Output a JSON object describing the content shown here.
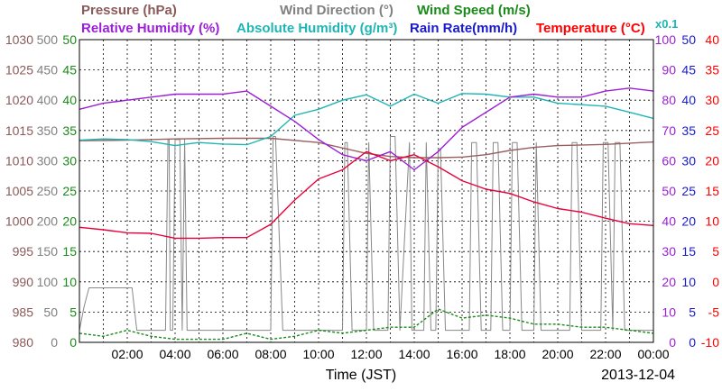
{
  "chart_data": {
    "type": "line",
    "header": {
      "row1": [
        {
          "text": "Pressure (hPa)",
          "color": "#8b5a5a"
        },
        {
          "text": "Wind Direction (°)",
          "color": "#808080"
        },
        {
          "text": "Wind Speed (m/s)",
          "color": "#1a8a1a"
        }
      ],
      "row2": [
        {
          "text": "Relative Humidity (%)",
          "color": "#9b1fd6"
        },
        {
          "text": "Absolute Humidity (g/m³)",
          "color": "#1fb5b5"
        },
        {
          "text": "Rain Rate(mm/h)",
          "color": "#1a1acc"
        },
        {
          "text": "Temperature (°C)",
          "color": "#ff0000"
        }
      ],
      "scale_note": {
        "text": "x0.1",
        "color": "#1fb5b5"
      }
    },
    "xlabel": "Time (JST)",
    "date": "2013-12-04",
    "x_range_hours": [
      0,
      24
    ],
    "x_ticks": [
      "02:00",
      "04:00",
      "06:00",
      "08:00",
      "10:00",
      "12:00",
      "14:00",
      "16:00",
      "18:00",
      "20:00",
      "22:00",
      "00:00"
    ],
    "grid": true,
    "left_axes": [
      {
        "name": "Pressure (hPa)",
        "color": "#8b5a5a",
        "ticks": [
          "980",
          "985",
          "990",
          "995",
          "1000",
          "1005",
          "1010",
          "1015",
          "1020",
          "1025",
          "1030"
        ]
      },
      {
        "name": "Wind Direction (°)",
        "color": "#808080",
        "ticks": [
          "0",
          "50",
          "100",
          "150",
          "200",
          "250",
          "300",
          "350",
          "400",
          "450",
          "500"
        ]
      },
      {
        "name": "Wind Speed (m/s)",
        "color": "#1a8a1a",
        "ticks": [
          "0",
          "5",
          "10",
          "15",
          "20",
          "25",
          "30",
          "35",
          "40",
          "45",
          "50"
        ]
      }
    ],
    "right_axes": [
      {
        "name": "Relative Humidity (%) / Absolute Humidity",
        "color": "#9b1fd6",
        "ticks": [
          "0",
          "10",
          "20",
          "30",
          "40",
          "50",
          "60",
          "70",
          "80",
          "90",
          "100"
        ]
      },
      {
        "name": "Rain Rate (mm/h)",
        "color": "#1a1acc",
        "ticks": [
          "0",
          "5",
          "10",
          "15",
          "20",
          "25",
          "30",
          "35",
          "40",
          "45",
          "50"
        ]
      },
      {
        "name": "Temperature (°C)",
        "color": "#ff0000",
        "ticks": [
          "-10",
          "-5",
          "0",
          "5",
          "10",
          "15",
          "20",
          "25",
          "30",
          "35",
          "40"
        ]
      }
    ],
    "series": [
      {
        "name": "Temperature (°C)",
        "color": "#e8003a",
        "axis": "temperature",
        "x": [
          0,
          1,
          2,
          3,
          4,
          5,
          6,
          7,
          8,
          9,
          10,
          11,
          12,
          13,
          14,
          15,
          16,
          17,
          18,
          19,
          20,
          21,
          22,
          23,
          24
        ],
        "y": [
          9.0,
          8.6,
          8.1,
          8.0,
          7.2,
          7.2,
          7.3,
          7.3,
          9.5,
          13.5,
          17.0,
          18.5,
          21.5,
          20.0,
          21.0,
          19.0,
          16.7,
          15.3,
          14.6,
          13.2,
          12.1,
          11.5,
          10.5,
          9.6,
          9.3
        ]
      },
      {
        "name": "Relative Humidity (%)",
        "color": "#9b1fd6",
        "axis": "rh",
        "x": [
          0,
          1,
          2,
          3,
          4,
          5,
          6,
          7,
          8,
          9,
          10,
          11,
          12,
          13,
          14,
          15,
          16,
          17,
          18,
          19,
          20,
          21,
          22,
          23,
          24
        ],
        "y": [
          77,
          79,
          80,
          81,
          82,
          82,
          82,
          83,
          78,
          73,
          67,
          62,
          60,
          63,
          57,
          63,
          71,
          76,
          81,
          82,
          81,
          81,
          83,
          84,
          83
        ]
      },
      {
        "name": "Absolute Humidity (g/m³) x0.1",
        "color": "#1fb5b5",
        "axis": "rh",
        "x": [
          0,
          1,
          2,
          3,
          4,
          5,
          6,
          7,
          8,
          9,
          10,
          11,
          12,
          13,
          14,
          15,
          16,
          17,
          18,
          19,
          20,
          21,
          22,
          23,
          24
        ],
        "y": [
          66.8,
          67.2,
          67.0,
          66.3,
          65.0,
          66.0,
          65.5,
          65.3,
          68.0,
          75.0,
          77.0,
          80.0,
          81.8,
          78.0,
          82.0,
          79.0,
          82.2,
          82.0,
          81.0,
          81.0,
          79.0,
          78.5,
          78.0,
          76.0,
          74.0
        ]
      },
      {
        "name": "Pressure (hPa)",
        "color": "#9a6060",
        "axis": "pressure",
        "x": [
          0,
          2,
          4,
          6,
          8,
          10,
          12,
          13,
          14,
          15,
          16,
          17,
          18,
          19,
          20,
          22,
          24
        ],
        "y": [
          1013.3,
          1013.4,
          1013.6,
          1013.7,
          1013.7,
          1013.0,
          1011.2,
          1010.7,
          1010.5,
          1010.5,
          1010.6,
          1011.0,
          1011.7,
          1012.2,
          1012.5,
          1012.7,
          1013.1
        ]
      },
      {
        "name": "Wind Direction (°)",
        "color": "#888888",
        "axis": "winddir",
        "x": [
          0,
          0.2,
          0.4,
          2.2,
          2.4,
          3.6,
          3.7,
          3.75,
          3.8,
          3.9,
          4.0,
          4.2,
          4.3,
          4.4,
          4.5,
          4.6,
          4.7,
          7.0,
          7.1,
          7.2,
          8.0,
          8.1,
          8.2,
          8.5,
          8.6,
          9.0,
          9.2,
          11.0,
          11.1,
          11.2,
          11.4,
          12.0,
          12.1,
          12.3,
          12.9,
          13.0,
          13.2,
          13.4,
          13.8,
          13.9,
          14.4,
          14.5,
          14.7,
          14.9,
          15.0,
          15.1,
          15.3,
          16.3,
          16.4,
          16.6,
          16.8,
          17.2,
          17.3,
          17.5,
          17.7,
          18.0,
          18.1,
          18.3,
          18.5,
          19.0,
          19.1,
          19.3,
          20.5,
          20.6,
          20.8,
          21.0,
          21.8,
          21.9,
          22.1,
          22.3,
          22.4,
          22.6,
          22.8,
          23.0,
          24.0
        ],
        "y": [
          20,
          60,
          90,
          90,
          20,
          20,
          335,
          335,
          20,
          20,
          335,
          335,
          20,
          335,
          20,
          20,
          20,
          20,
          20,
          20,
          20,
          340,
          340,
          20,
          20,
          20,
          20,
          20,
          330,
          330,
          20,
          20,
          330,
          20,
          20,
          340,
          340,
          20,
          330,
          20,
          20,
          330,
          20,
          20,
          320,
          320,
          20,
          20,
          330,
          330,
          20,
          20,
          330,
          330,
          20,
          20,
          330,
          330,
          20,
          20,
          330,
          20,
          20,
          330,
          330,
          20,
          20,
          330,
          330,
          20,
          330,
          330,
          20,
          20,
          20
        ]
      },
      {
        "name": "Wind Speed (m/s)",
        "color": "#1a8a1a",
        "axis": "windspeed",
        "x": [
          0,
          1,
          2,
          3,
          4,
          5,
          6,
          7,
          8,
          9,
          10,
          11,
          12,
          13,
          14,
          15,
          16,
          17,
          18,
          19,
          20,
          21,
          22,
          23,
          24
        ],
        "y": [
          1.5,
          1.0,
          2.0,
          1.0,
          0.5,
          0.5,
          0.5,
          1.5,
          0.5,
          1.0,
          2.0,
          1.5,
          2.0,
          2.5,
          2.5,
          5.5,
          4.0,
          4.5,
          4.0,
          3.0,
          3.0,
          2.5,
          2.5,
          2.0,
          1.5
        ]
      }
    ]
  }
}
